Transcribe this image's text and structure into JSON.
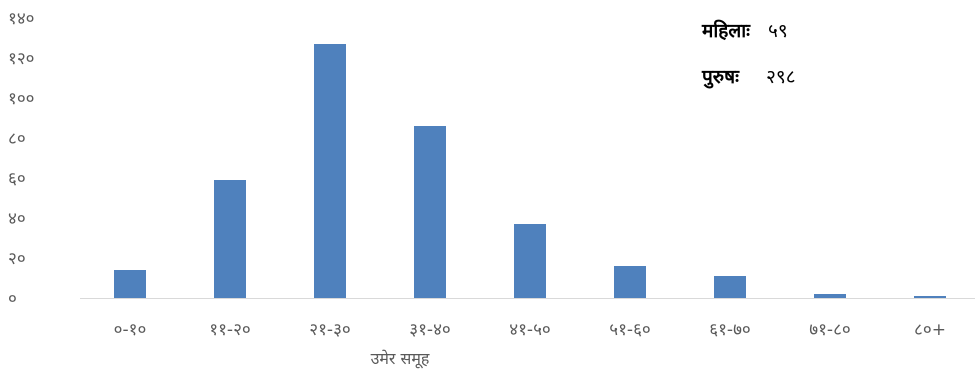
{
  "chart_data": {
    "type": "bar",
    "categories": [
      "०-१०",
      "११-२०",
      "२१-३०",
      "३१-४०",
      "४१-५०",
      "५१-६०",
      "६१-७०",
      "७१-८०",
      "८०+"
    ],
    "values": [
      14,
      59,
      127,
      86,
      37,
      16,
      11,
      2,
      1
    ],
    "ylim": [
      0,
      140
    ],
    "yticks": [
      0,
      20,
      40,
      60,
      80,
      100,
      120,
      140
    ],
    "ytick_labels": [
      "०",
      "२०",
      "४०",
      "६०",
      "८०",
      "१००",
      "१२०",
      "१४०"
    ],
    "xlabel": "उमेर समूह",
    "ylabel": "",
    "title": "",
    "grid": false,
    "legend": "none",
    "bar_color": "#4F81BD",
    "axis_color": "#D9D9D9"
  },
  "annotations": [
    {
      "key": "महिलाः",
      "value": "५९"
    },
    {
      "key": "पुरुषः",
      "value": "२९८"
    }
  ]
}
